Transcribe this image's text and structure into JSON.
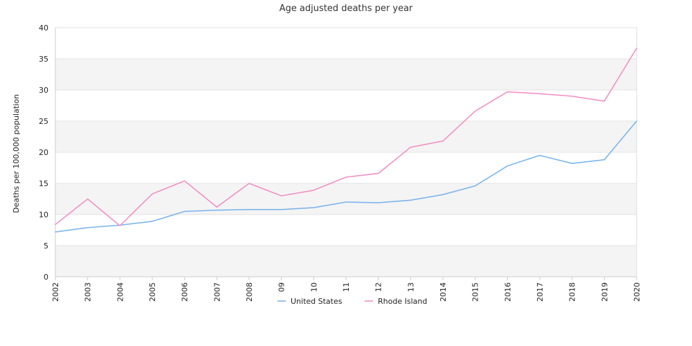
{
  "chart_data": {
    "type": "line",
    "title": "Age adjusted deaths per year",
    "ylabel": "Deaths per 100,000 population",
    "xlabel": "",
    "ylim": [
      0,
      40
    ],
    "yticks": [
      0,
      5,
      10,
      15,
      20,
      25,
      30,
      35,
      40
    ],
    "categories": [
      "2002",
      "2003",
      "2004",
      "2005",
      "2006",
      "2007",
      "2008",
      "09",
      "10",
      "11",
      "12",
      "13",
      "2014",
      "2015",
      "2016",
      "2017",
      "2018",
      "2019",
      "2020"
    ],
    "grid": true,
    "legend_position": "bottom",
    "series": [
      {
        "name": "United States",
        "color": "#7cb5ec",
        "values": [
          7.2,
          7.9,
          8.3,
          8.9,
          10.5,
          10.7,
          10.8,
          10.8,
          11.1,
          12.0,
          11.9,
          12.3,
          13.2,
          14.6,
          17.8,
          19.5,
          18.2,
          18.8,
          25.0
        ]
      },
      {
        "name": "Rhode Island",
        "color": "#f190c4",
        "values": [
          8.4,
          12.5,
          8.2,
          13.3,
          15.4,
          11.2,
          15.0,
          13.0,
          13.9,
          16.0,
          16.6,
          20.8,
          21.8,
          26.6,
          29.7,
          29.4,
          29.0,
          28.2,
          36.7
        ]
      }
    ]
  }
}
